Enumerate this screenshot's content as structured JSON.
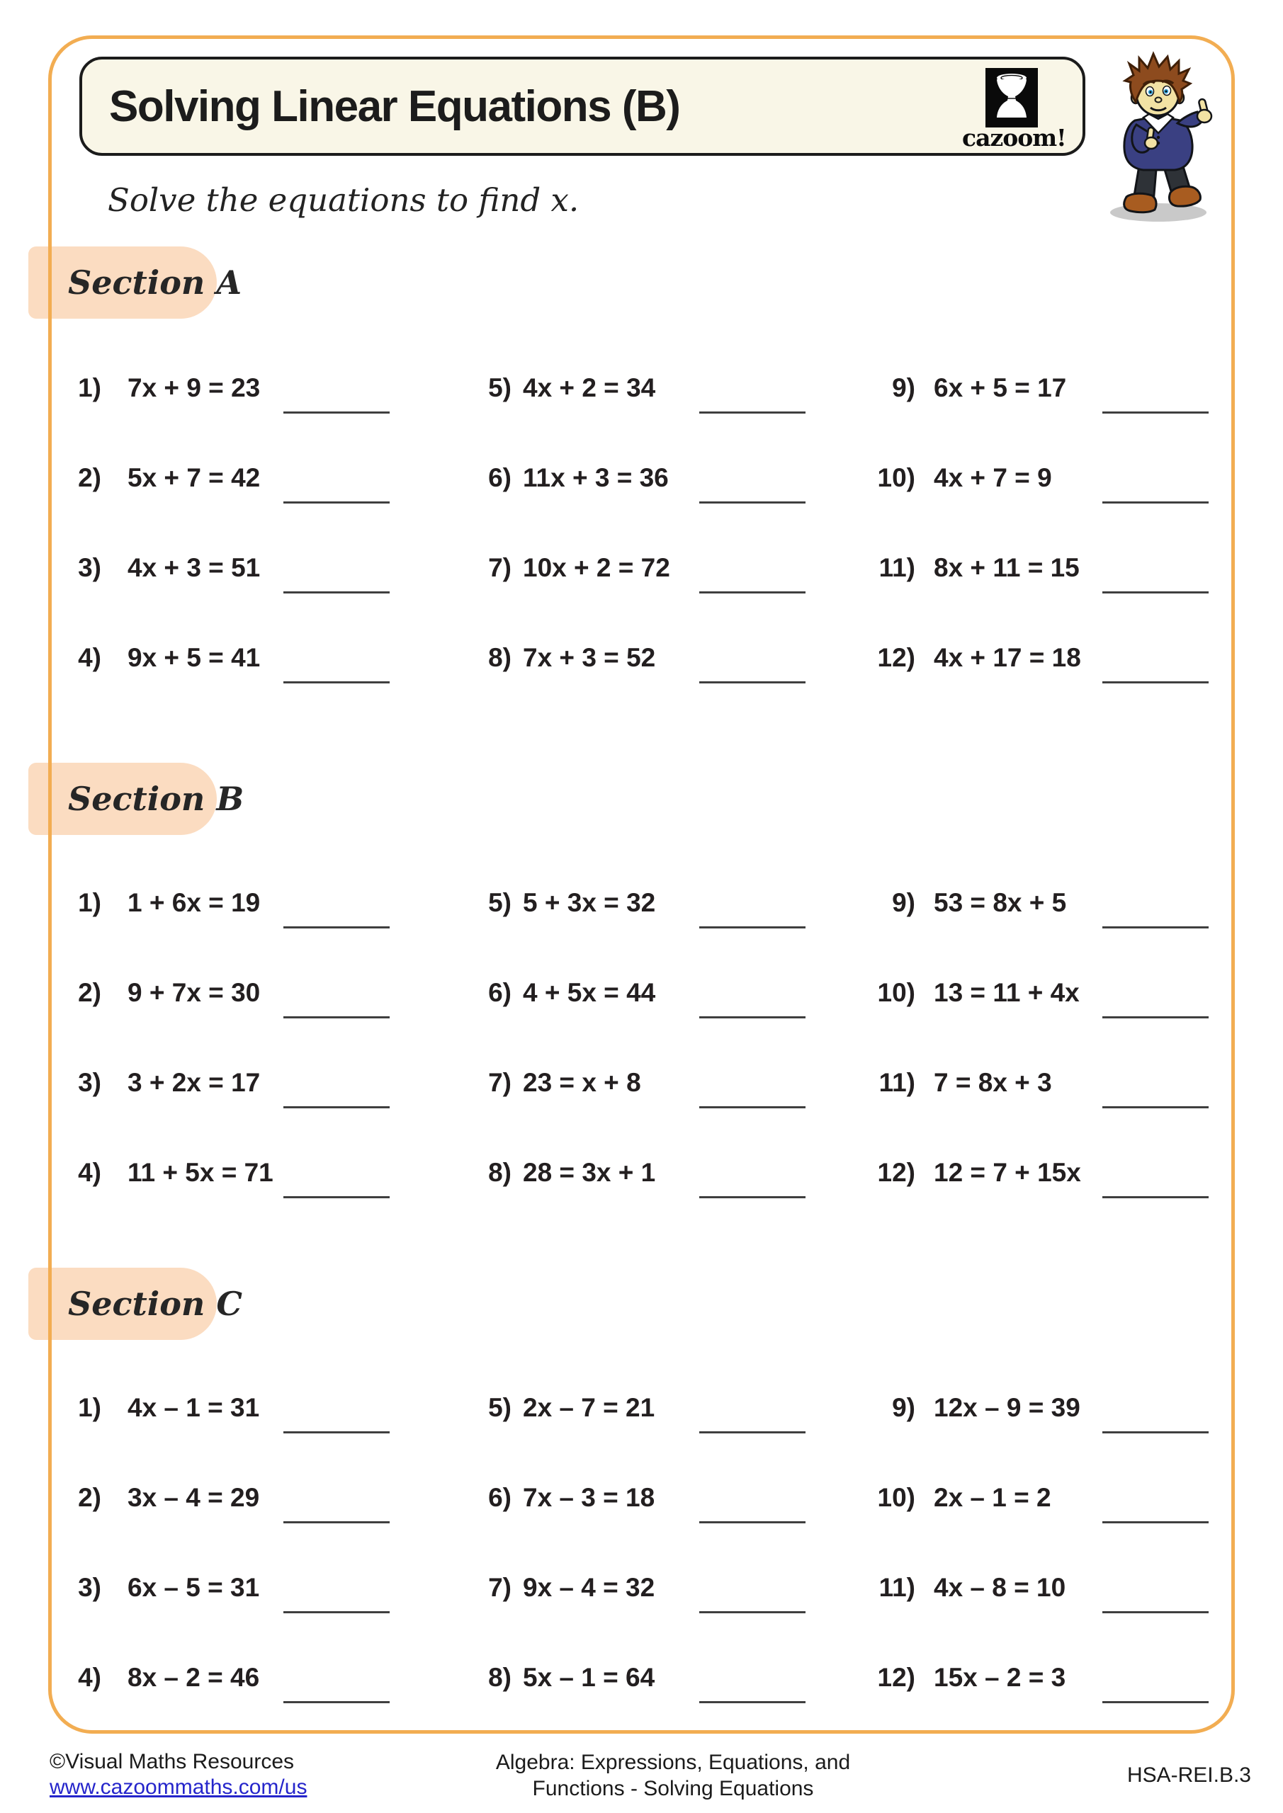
{
  "page": {
    "title": "Solving Linear Equations (B)",
    "subtitle": "Solve the equations to find x.",
    "logo_text": "cazoom!"
  },
  "sections": [
    {
      "label": "Section A",
      "problems": [
        {
          "num": "1)",
          "eq": "7x + 9 = 23"
        },
        {
          "num": "2)",
          "eq": "5x + 7 = 42"
        },
        {
          "num": "3)",
          "eq": "4x + 3 = 51"
        },
        {
          "num": "4)",
          "eq": "9x + 5 = 41"
        },
        {
          "num": "5)",
          "eq": "4x + 2 = 34"
        },
        {
          "num": "6)",
          "eq": "11x + 3 = 36"
        },
        {
          "num": "7)",
          "eq": "10x + 2 = 72"
        },
        {
          "num": "8)",
          "eq": "7x + 3 = 52"
        },
        {
          "num": "9)",
          "eq": "6x + 5 = 17"
        },
        {
          "num": "10)",
          "eq": "4x + 7 = 9"
        },
        {
          "num": "11)",
          "eq": "8x + 11 = 15"
        },
        {
          "num": "12)",
          "eq": "4x + 17 = 18"
        }
      ]
    },
    {
      "label": "Section B",
      "problems": [
        {
          "num": "1)",
          "eq": "1 + 6x = 19"
        },
        {
          "num": "2)",
          "eq": "9 + 7x = 30"
        },
        {
          "num": "3)",
          "eq": "3 + 2x = 17"
        },
        {
          "num": "4)",
          "eq": "11 + 5x = 71"
        },
        {
          "num": "5)",
          "eq": "5 + 3x = 32"
        },
        {
          "num": "6)",
          "eq": "4 + 5x = 44"
        },
        {
          "num": "7)",
          "eq": "23 = x + 8"
        },
        {
          "num": "8)",
          "eq": "28 = 3x + 1"
        },
        {
          "num": "9)",
          "eq": "53 = 8x + 5"
        },
        {
          "num": "10)",
          "eq": "13 = 11 + 4x"
        },
        {
          "num": "11)",
          "eq": "7 = 8x + 3"
        },
        {
          "num": "12)",
          "eq": "12 = 7 + 15x"
        }
      ]
    },
    {
      "label": "Section C",
      "problems": [
        {
          "num": "1)",
          "eq": "4x – 1 = 31"
        },
        {
          "num": "2)",
          "eq": "3x – 4 = 29"
        },
        {
          "num": "3)",
          "eq": "6x – 5 = 31"
        },
        {
          "num": "4)",
          "eq": "8x – 2 = 46"
        },
        {
          "num": "5)",
          "eq": "2x – 7 = 21"
        },
        {
          "num": "6)",
          "eq": "7x – 3 = 18"
        },
        {
          "num": "7)",
          "eq": "9x – 4 = 32"
        },
        {
          "num": "8)",
          "eq": "5x – 1 = 64"
        },
        {
          "num": "9)",
          "eq": "12x – 9 = 39"
        },
        {
          "num": "10)",
          "eq": "2x – 1 = 2"
        },
        {
          "num": "11)",
          "eq": "4x – 8 = 10"
        },
        {
          "num": "12)",
          "eq": "15x – 2 = 3"
        }
      ]
    }
  ],
  "footer": {
    "copyright": "©Visual Maths Resources",
    "link": "www.cazoommaths.com/us",
    "center_line1": "Algebra: Expressions, Equations, and",
    "center_line2": "Functions - Solving Equations",
    "standard_code": "HSA-REI.B.3"
  },
  "colors": {
    "page_border_orange": "#F2AD52",
    "section_badge_peach": "#FBDCC1",
    "title_box_cream": "#F9F6E7",
    "ink": "#231F20",
    "link_blue": "#2525CB",
    "answer_line": "#3F3F3F"
  }
}
